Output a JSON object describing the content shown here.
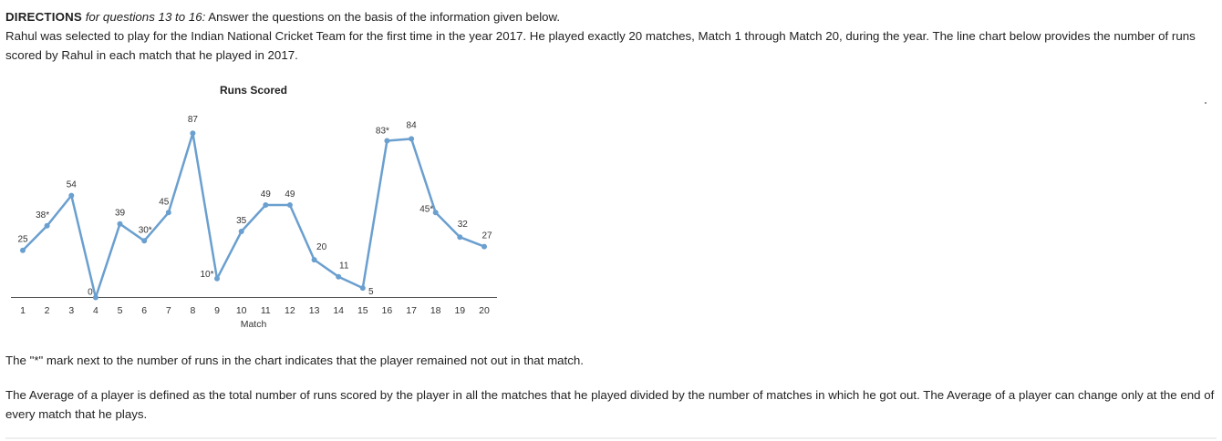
{
  "directions": {
    "heading": "DIRECTIONS",
    "subheading": "for questions 13 to 16:",
    "instruction": "Answer the questions on the basis of the information given below.",
    "paragraph": "Rahul was selected to play for the Indian National Cricket Team for the first time in the year 2017. He played exactly 20 matches, Match 1 through Match 20, during the year. The line chart below provides the number of runs scored by Rahul in each match that he played in 2017."
  },
  "chart_data": {
    "type": "line",
    "title": "Runs Scored",
    "xlabel": "Match",
    "ylabel": "",
    "x": [
      1,
      2,
      3,
      4,
      5,
      6,
      7,
      8,
      9,
      10,
      11,
      12,
      13,
      14,
      15,
      16,
      17,
      18,
      19,
      20
    ],
    "values": [
      25,
      38,
      54,
      0,
      39,
      30,
      45,
      87,
      10,
      35,
      49,
      49,
      20,
      11,
      5,
      83,
      84,
      45,
      32,
      27
    ],
    "labels": [
      "25",
      "38*",
      "54",
      "0",
      "39",
      "30*",
      "45",
      "87",
      "10*",
      "35",
      "49",
      "49",
      "20",
      "11",
      "5",
      "83*",
      "84",
      "45*",
      "32",
      "27"
    ],
    "not_out": [
      false,
      true,
      false,
      false,
      false,
      true,
      false,
      false,
      true,
      false,
      false,
      false,
      false,
      false,
      false,
      true,
      false,
      true,
      false,
      false
    ],
    "ylim": [
      0,
      90
    ],
    "grid": false,
    "line_color": "#6a9fcf"
  },
  "note": "The \"*\" mark next to the number of runs in the chart indicates that the player remained not out in that match.",
  "definition": "The Average of a player is defined as the total number of runs scored by the player in all the matches that he played divided by the number of matches in which he got out. The Average of a player can change only at the end of every match that he plays."
}
